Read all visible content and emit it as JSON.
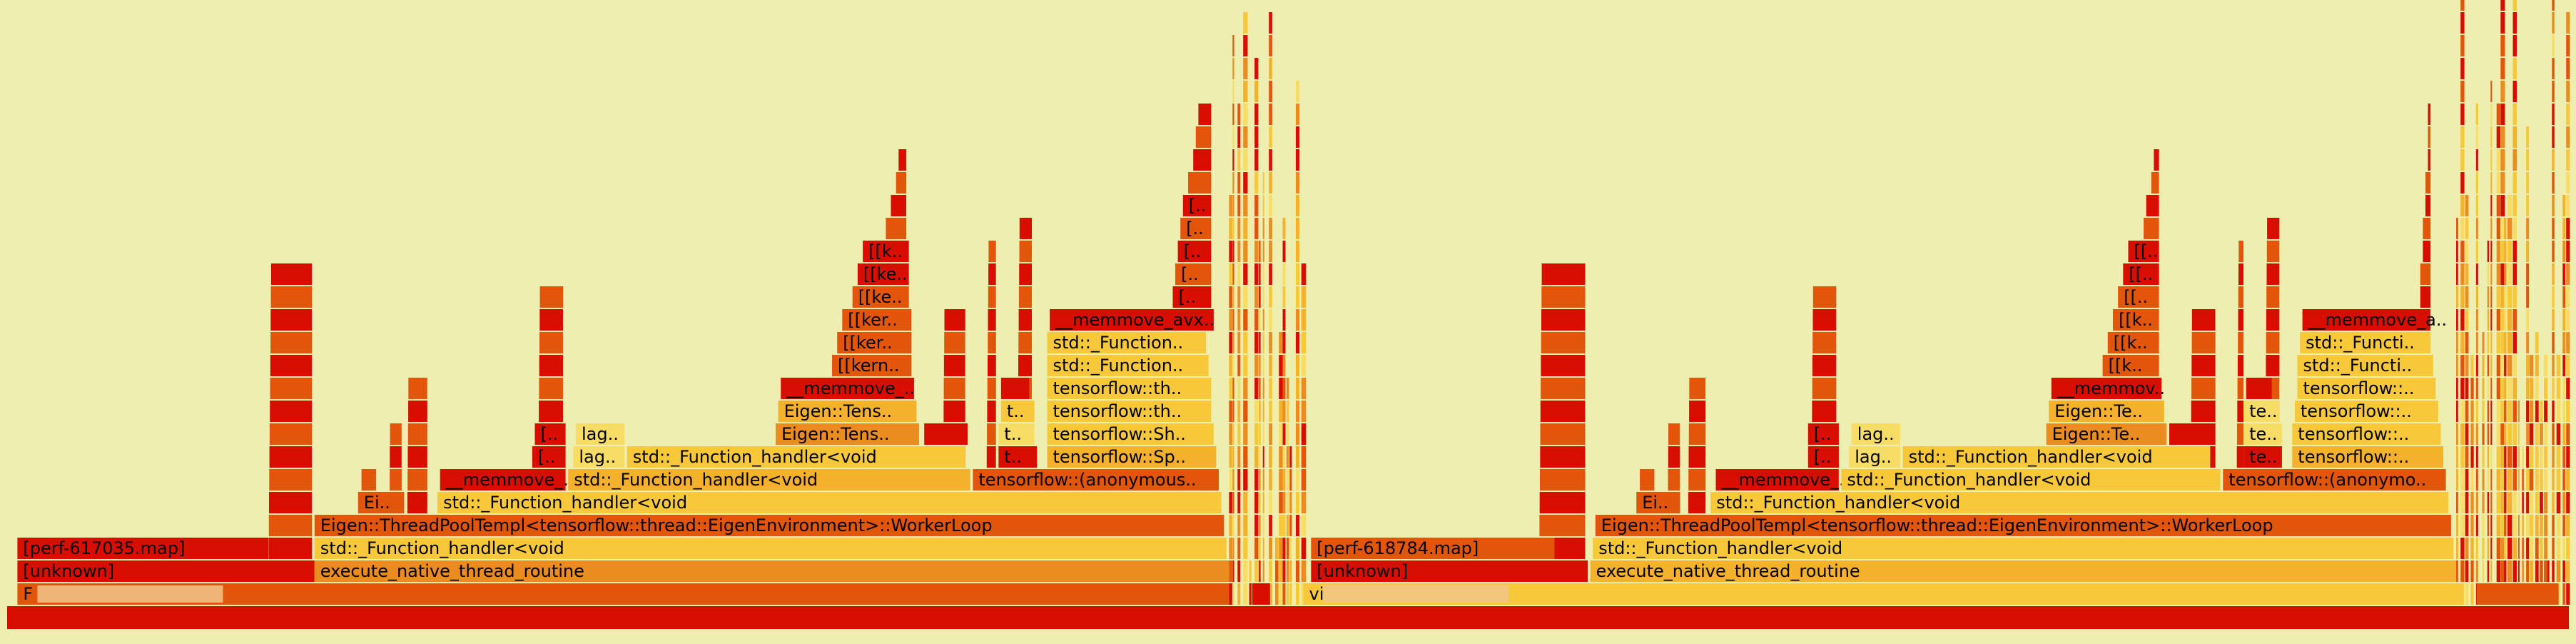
{
  "chart_data": {
    "type": "flamegraph",
    "title": "",
    "background_color": "#eeeeb0",
    "colors": {
      "red": "#d80e00",
      "dark_orange": "#e2560c",
      "orange": "#ea8c1f",
      "light_orange": "#f4b12c",
      "yellow": "#f6c83a",
      "pale_yellow": "#f7dd66"
    },
    "frames": [
      {
        "label": "",
        "level": 0,
        "start": 0.0,
        "end": 100.0,
        "color": "#d80e00"
      },
      {
        "label": "F",
        "redacted": true,
        "level": 1,
        "start": 0.4,
        "end": 47.7,
        "color": "#e2560c"
      },
      {
        "label": "",
        "level": 1,
        "start": 48.6,
        "end": 49.3,
        "color": "#d80e00"
      },
      {
        "label": "vi",
        "redacted": true,
        "level": 1,
        "start": 50.6,
        "end": 95.9,
        "color": "#f6c83a"
      },
      {
        "label": "",
        "level": 1,
        "start": 96.4,
        "end": 99.6,
        "color": "#e2560c"
      },
      {
        "label": "[unknown]",
        "level": 2,
        "start": 0.4,
        "end": 12.0,
        "color": "#d80e00"
      },
      {
        "label": "execute_native_thread_routine",
        "level": 2,
        "start": 12.0,
        "end": 47.7,
        "color": "#ea8c1f"
      },
      {
        "label": "[unknown]",
        "level": 2,
        "start": 50.9,
        "end": 61.7,
        "color": "#d80e00"
      },
      {
        "label": "execute_native_thread_routine",
        "level": 2,
        "start": 61.8,
        "end": 95.6,
        "color": "#f4b12c"
      },
      {
        "label": "[perf-617035.map]",
        "level": 3,
        "start": 0.4,
        "end": 10.2,
        "color": "#d80e00"
      },
      {
        "label": "std::_Function_handler<void",
        "level": 3,
        "start": 12.0,
        "end": 47.6,
        "color": "#f6c83a"
      },
      {
        "label": "[perf-618784.map]",
        "level": 3,
        "start": 50.9,
        "end": 60.4,
        "color": "#e2560c"
      },
      {
        "label": "std::_Function_handler<void",
        "level": 3,
        "start": 61.9,
        "end": 95.5,
        "color": "#f6c83a"
      },
      {
        "label": "Eigen::ThreadPoolTempl<tensorflow::thread::EigenEnvironment>::WorkerLoop",
        "level": 4,
        "start": 12.0,
        "end": 47.5,
        "color": "#e2560c"
      },
      {
        "label": "Eigen::ThreadPoolTempl<tensorflow::thread::EigenEnvironment>::WorkerLoop",
        "level": 4,
        "start": 62.0,
        "end": 95.4,
        "color": "#e2560c"
      },
      {
        "label": "Ei..",
        "level": 5,
        "start": 13.7,
        "end": 15.5,
        "color": "#e2560c"
      },
      {
        "label": "std::_Function_handler<void",
        "level": 5,
        "start": 16.8,
        "end": 47.4,
        "color": "#f6c83a"
      },
      {
        "label": "Ei..",
        "level": 5,
        "start": 63.6,
        "end": 65.3,
        "color": "#e2560c"
      },
      {
        "label": "std::_Function_handler<void",
        "level": 5,
        "start": 66.5,
        "end": 95.3,
        "color": "#f6c83a"
      },
      {
        "label": "__memmove_..",
        "level": 6,
        "start": 16.9,
        "end": 21.8,
        "color": "#d80e00"
      },
      {
        "label": "std::_Function_handler<void",
        "level": 6,
        "start": 21.9,
        "end": 37.6,
        "color": "#f4b12c"
      },
      {
        "label": "tensorflow::(anonymous..",
        "level": 6,
        "start": 37.7,
        "end": 47.3,
        "color": "#e2560c"
      },
      {
        "label": "__memmove_..",
        "level": 6,
        "start": 66.7,
        "end": 71.5,
        "color": "#d80e00"
      },
      {
        "label": "std::_Function_handler<void",
        "level": 6,
        "start": 71.6,
        "end": 86.4,
        "color": "#f6c83a"
      },
      {
        "label": "tensorflow::(anonymo..",
        "level": 6,
        "start": 86.5,
        "end": 95.2,
        "color": "#e2560c"
      },
      {
        "label": "[..",
        "level": 7,
        "start": 20.5,
        "end": 21.8,
        "color": "#d80e00"
      },
      {
        "label": "lag..",
        "level": 7,
        "start": 22.1,
        "end": 24.1,
        "color": "#f7dd66"
      },
      {
        "label": "std::_Function_handler<void",
        "level": 7,
        "start": 24.2,
        "end": 37.4,
        "color": "#f6c83a"
      },
      {
        "label": "t..",
        "level": 7,
        "start": 38.7,
        "end": 40.2,
        "color": "#d80e00"
      },
      {
        "label": "tensorflow::Sp..",
        "level": 7,
        "start": 40.6,
        "end": 47.2,
        "color": "#f4b12c"
      },
      {
        "label": "[..",
        "level": 7,
        "start": 70.3,
        "end": 71.5,
        "color": "#d80e00"
      },
      {
        "label": "lag..",
        "level": 7,
        "start": 71.9,
        "end": 73.9,
        "color": "#f7dd66"
      },
      {
        "label": "std::_Function_handler<void",
        "level": 7,
        "start": 74.0,
        "end": 86.0,
        "color": "#f6c83a"
      },
      {
        "label": "te..",
        "level": 7,
        "start": 87.3,
        "end": 88.8,
        "color": "#d80e00"
      },
      {
        "label": "tensorflow::..",
        "level": 7,
        "start": 89.2,
        "end": 95.1,
        "color": "#f4b12c"
      },
      {
        "label": "[..",
        "level": 8,
        "start": 20.6,
        "end": 21.8,
        "color": "#d80e00"
      },
      {
        "label": "lag..",
        "level": 8,
        "start": 22.2,
        "end": 24.1,
        "color": "#f7dd66"
      },
      {
        "label": "Eigen::Tens..",
        "level": 8,
        "start": 30.0,
        "end": 35.6,
        "color": "#ea8c1f"
      },
      {
        "label": "",
        "level": 8,
        "start": 35.8,
        "end": 37.5,
        "color": "#d80e00"
      },
      {
        "label": "t..",
        "level": 8,
        "start": 38.7,
        "end": 40.1,
        "color": "#f7dd66"
      },
      {
        "label": "tensorflow::Sh..",
        "level": 8,
        "start": 40.6,
        "end": 47.1,
        "color": "#f6c83a"
      },
      {
        "label": "[..",
        "level": 8,
        "start": 70.3,
        "end": 71.5,
        "color": "#d80e00"
      },
      {
        "label": "lag..",
        "level": 8,
        "start": 72.0,
        "end": 73.9,
        "color": "#f7dd66"
      },
      {
        "label": "Eigen::Te..",
        "level": 8,
        "start": 79.6,
        "end": 84.3,
        "color": "#ea8c1f"
      },
      {
        "label": "",
        "level": 8,
        "start": 84.4,
        "end": 86.2,
        "color": "#d80e00"
      },
      {
        "label": "te..",
        "level": 8,
        "start": 87.3,
        "end": 88.8,
        "color": "#f7dd66"
      },
      {
        "label": "tensorflow::..",
        "level": 8,
        "start": 89.2,
        "end": 95.0,
        "color": "#f6c83a"
      },
      {
        "label": "Eigen::Tens..",
        "level": 9,
        "start": 30.1,
        "end": 35.5,
        "color": "#f4b12c"
      },
      {
        "label": "t..",
        "level": 9,
        "start": 38.8,
        "end": 40.1,
        "color": "#f6c83a"
      },
      {
        "label": "tensorflow::th..",
        "level": 9,
        "start": 40.6,
        "end": 47.0,
        "color": "#f6c83a"
      },
      {
        "label": "Eigen::Te..",
        "level": 9,
        "start": 79.7,
        "end": 84.2,
        "color": "#f4b12c"
      },
      {
        "label": "te..",
        "level": 9,
        "start": 87.3,
        "end": 88.7,
        "color": "#f7dd66"
      },
      {
        "label": "tensorflow::..",
        "level": 9,
        "start": 89.3,
        "end": 94.9,
        "color": "#f6c83a"
      },
      {
        "label": "__memmove_..",
        "level": 10,
        "start": 30.2,
        "end": 35.4,
        "color": "#d80e00"
      },
      {
        "label": "",
        "level": 10,
        "start": 38.8,
        "end": 39.9,
        "color": "#d80e00"
      },
      {
        "label": "tensorflow::th..",
        "level": 10,
        "start": 40.6,
        "end": 47.0,
        "color": "#f6c83a"
      },
      {
        "label": "__memmov..",
        "level": 10,
        "start": 79.8,
        "end": 84.1,
        "color": "#d80e00"
      },
      {
        "label": "",
        "level": 10,
        "start": 87.4,
        "end": 88.4,
        "color": "#d80e00"
      },
      {
        "label": "tensorflow::..",
        "level": 10,
        "start": 89.4,
        "end": 94.8,
        "color": "#f6c83a"
      },
      {
        "label": "[[kern..",
        "level": 11,
        "start": 32.2,
        "end": 35.3,
        "color": "#e2560c"
      },
      {
        "label": "std::_Function..",
        "level": 11,
        "start": 40.6,
        "end": 46.9,
        "color": "#f6c83a"
      },
      {
        "label": "[[k..",
        "level": 11,
        "start": 81.8,
        "end": 84.0,
        "color": "#e2560c"
      },
      {
        "label": "std::_Functi..",
        "level": 11,
        "start": 89.4,
        "end": 94.7,
        "color": "#f6c83a"
      },
      {
        "label": "[[ker..",
        "level": 12,
        "start": 32.4,
        "end": 35.3,
        "color": "#e2560c"
      },
      {
        "label": "std::_Function..",
        "level": 12,
        "start": 40.6,
        "end": 46.8,
        "color": "#f6c83a"
      },
      {
        "label": "[[k..",
        "level": 12,
        "start": 82.0,
        "end": 84.0,
        "color": "#e2560c"
      },
      {
        "label": "std::_Functi..",
        "level": 12,
        "start": 89.5,
        "end": 94.6,
        "color": "#f6c83a"
      },
      {
        "label": "[[ker..",
        "level": 13,
        "start": 32.6,
        "end": 35.3,
        "color": "#e2560c"
      },
      {
        "label": "__memmove_avx..",
        "level": 13,
        "start": 40.7,
        "end": 47.1,
        "color": "#d80e00"
      },
      {
        "label": "[[k..",
        "level": 13,
        "start": 82.2,
        "end": 84.0,
        "color": "#e2560c"
      },
      {
        "label": "__memmove_a..",
        "level": 13,
        "start": 89.6,
        "end": 94.6,
        "color": "#d80e00"
      },
      {
        "label": "[[ke..",
        "level": 14,
        "start": 33.0,
        "end": 35.2,
        "color": "#e2560c"
      },
      {
        "label": "[..",
        "level": 14,
        "start": 45.5,
        "end": 47.0,
        "color": "#d80e00"
      },
      {
        "label": "[[..",
        "level": 14,
        "start": 82.4,
        "end": 84.0,
        "color": "#e2560c"
      },
      {
        "label": "",
        "level": 14,
        "start": 94.2,
        "end": 94.6,
        "color": "#d80e00"
      },
      {
        "label": "[[ke..",
        "level": 15,
        "start": 33.2,
        "end": 35.2,
        "color": "#d80e00"
      },
      {
        "label": "[..",
        "level": 15,
        "start": 45.6,
        "end": 47.0,
        "color": "#e2560c"
      },
      {
        "label": "[[..",
        "level": 15,
        "start": 82.6,
        "end": 84.0,
        "color": "#d80e00"
      },
      {
        "label": "",
        "level": 15,
        "start": 94.2,
        "end": 94.6,
        "color": "#e2560c"
      },
      {
        "label": "[[k..",
        "level": 16,
        "start": 33.4,
        "end": 35.2,
        "color": "#d80e00"
      },
      {
        "label": "[..",
        "level": 16,
        "start": 45.7,
        "end": 47.0,
        "color": "#d80e00"
      },
      {
        "label": "[[..",
        "level": 16,
        "start": 82.8,
        "end": 84.0,
        "color": "#d80e00"
      },
      {
        "label": "",
        "level": 16,
        "start": 94.3,
        "end": 94.6,
        "color": "#d80e00"
      },
      {
        "label": "",
        "level": 17,
        "start": 34.3,
        "end": 35.1,
        "color": "#e2560c"
      },
      {
        "label": "[..",
        "level": 17,
        "start": 45.8,
        "end": 47.0,
        "color": "#e2560c"
      },
      {
        "label": "",
        "level": 17,
        "start": 83.4,
        "end": 84.0,
        "color": "#e2560c"
      },
      {
        "label": "",
        "level": 17,
        "start": 94.3,
        "end": 94.6,
        "color": "#e2560c"
      },
      {
        "label": "",
        "level": 18,
        "start": 34.5,
        "end": 35.1,
        "color": "#d80e00"
      },
      {
        "label": "[..",
        "level": 18,
        "start": 45.9,
        "end": 47.0,
        "color": "#d80e00"
      },
      {
        "label": "",
        "level": 18,
        "start": 83.5,
        "end": 84.0,
        "color": "#d80e00"
      },
      {
        "label": "",
        "level": 18,
        "start": 94.4,
        "end": 94.6,
        "color": "#d80e00"
      },
      {
        "label": "",
        "level": 19,
        "start": 34.7,
        "end": 35.1,
        "color": "#e2560c"
      },
      {
        "label": "",
        "level": 19,
        "start": 46.1,
        "end": 47.0,
        "color": "#e2560c"
      },
      {
        "label": "",
        "level": 19,
        "start": 83.7,
        "end": 84.0,
        "color": "#e2560c"
      },
      {
        "label": "",
        "level": 19,
        "start": 94.4,
        "end": 94.6,
        "color": "#e2560c"
      },
      {
        "label": "",
        "level": 20,
        "start": 34.8,
        "end": 35.1,
        "color": "#d80e00"
      },
      {
        "label": "",
        "level": 20,
        "start": 46.3,
        "end": 47.0,
        "color": "#d80e00"
      },
      {
        "label": "",
        "level": 20,
        "start": 83.8,
        "end": 84.0,
        "color": "#d80e00"
      },
      {
        "label": "",
        "level": 20,
        "start": 94.5,
        "end": 94.6,
        "color": "#d80e00"
      },
      {
        "label": "",
        "level": 21,
        "start": 46.4,
        "end": 47.0,
        "color": "#e2560c"
      },
      {
        "label": "",
        "level": 21,
        "start": 94.5,
        "end": 94.6,
        "color": "#e2560c"
      },
      {
        "label": "",
        "level": 22,
        "start": 46.5,
        "end": 47.0,
        "color": "#d80e00"
      },
      {
        "label": "",
        "level": 22,
        "start": 94.5,
        "end": 94.6,
        "color": "#d80e00"
      }
    ],
    "towers": [
      {
        "start": 10.2,
        "end": 11.9,
        "depth": 16
      },
      {
        "start": 13.8,
        "end": 14.4,
        "depth": 7
      },
      {
        "start": 14.9,
        "end": 15.4,
        "depth": 9
      },
      {
        "start": 15.6,
        "end": 16.4,
        "depth": 11
      },
      {
        "start": 20.7,
        "end": 21.7,
        "depth": 15
      },
      {
        "start": 36.5,
        "end": 37.4,
        "depth": 14
      },
      {
        "start": 38.2,
        "end": 38.6,
        "depth": 17
      },
      {
        "start": 39.4,
        "end": 40.0,
        "depth": 18
      },
      {
        "start": 59.8,
        "end": 61.6,
        "depth": 16
      },
      {
        "start": 63.7,
        "end": 64.3,
        "depth": 7
      },
      {
        "start": 64.8,
        "end": 65.3,
        "depth": 9
      },
      {
        "start": 65.6,
        "end": 66.3,
        "depth": 11
      },
      {
        "start": 70.4,
        "end": 71.4,
        "depth": 15
      },
      {
        "start": 85.2,
        "end": 86.2,
        "depth": 14
      },
      {
        "start": 87.0,
        "end": 87.3,
        "depth": 17
      },
      {
        "start": 88.1,
        "end": 88.7,
        "depth": 18
      }
    ],
    "fringe": [
      {
        "start": 47.7,
        "end": 50.6,
        "max_depth": 26
      },
      {
        "start": 95.6,
        "end": 99.9,
        "max_depth": 27
      }
    ]
  }
}
